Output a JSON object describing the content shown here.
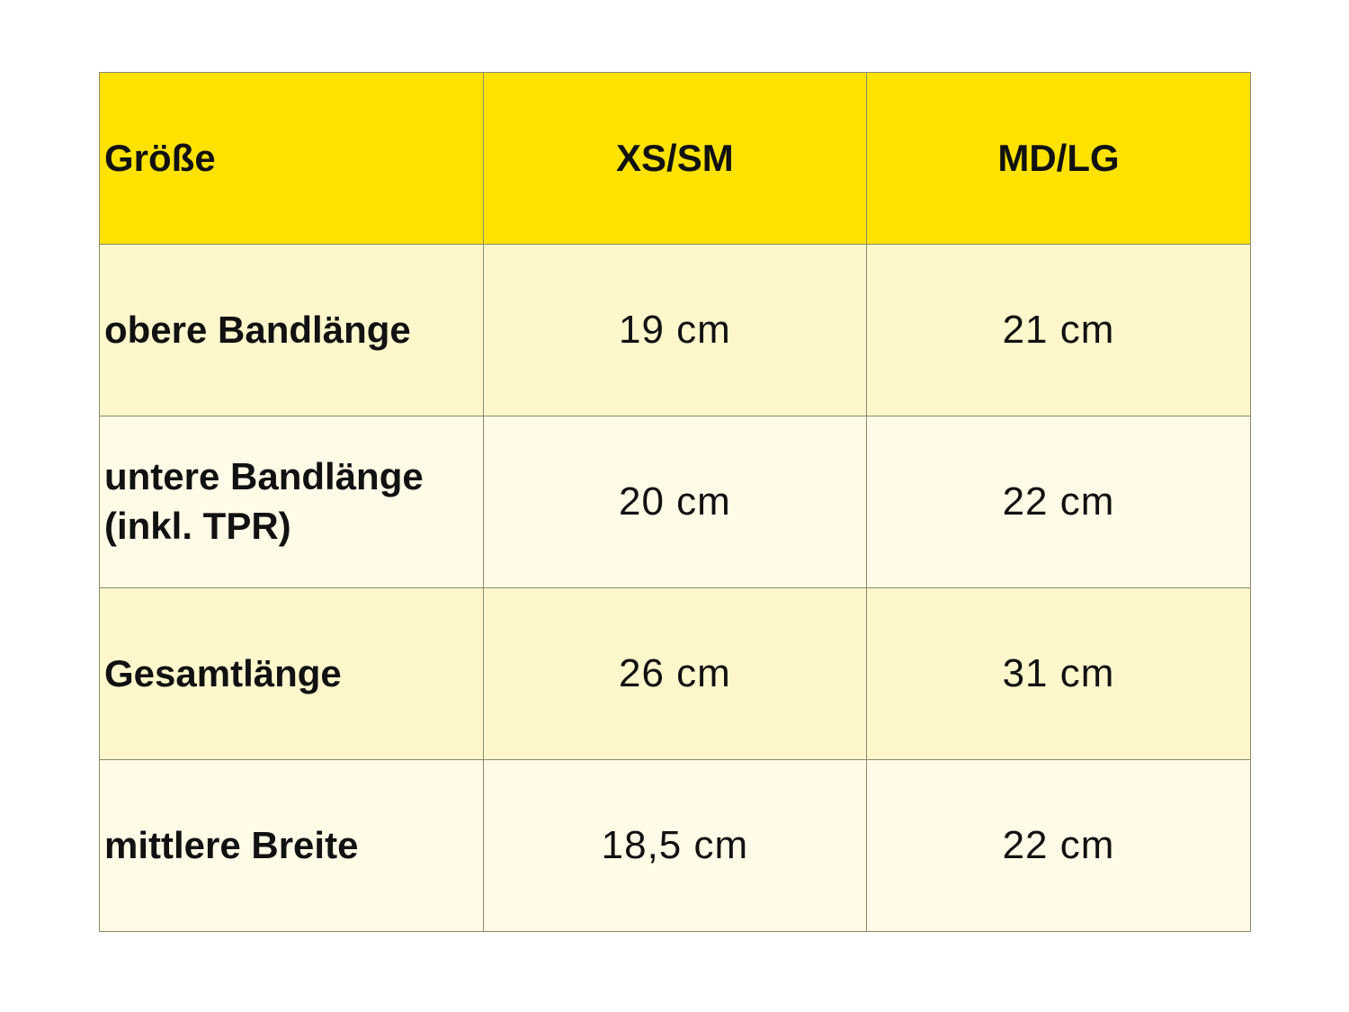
{
  "table": {
    "header": [
      "Größe",
      "XS/SM",
      "MD/LG"
    ],
    "rows": [
      {
        "label": "obere Bandlänge",
        "label2": "",
        "xs_sm": "19 cm",
        "md_lg": "21 cm"
      },
      {
        "label": "untere Bandlänge",
        "label2": "(inkl. TPR)",
        "xs_sm": "20 cm",
        "md_lg": "22 cm"
      },
      {
        "label": "Gesamtlänge",
        "label2": "",
        "xs_sm": "26 cm",
        "md_lg": "31 cm"
      },
      {
        "label": "mittlere Breite",
        "label2": "",
        "xs_sm": "18,5 cm",
        "md_lg": "22 cm"
      }
    ]
  },
  "colors": {
    "header": "#ffe200",
    "row_odd": "#fff7cc",
    "row_even": "#fffbe6"
  }
}
